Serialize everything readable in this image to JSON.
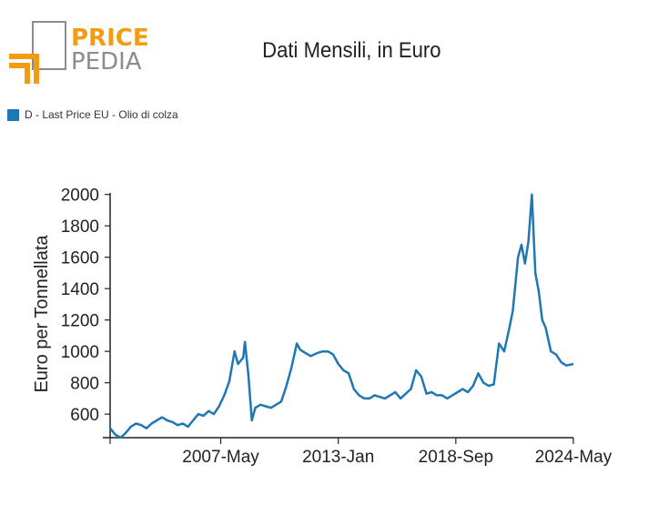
{
  "header": {
    "logo": {
      "word1": "PRICE",
      "word2": "PEDIA",
      "colors": {
        "primary": "#f39c12",
        "secondary": "#8c8c8c"
      }
    }
  },
  "chart_data": {
    "type": "line",
    "title": "Dati Mensili, in Euro",
    "xlabel": "",
    "ylabel": "Euro per Tonnellata",
    "ylim": [
      450,
      2010
    ],
    "yticks": [
      600,
      800,
      1000,
      1200,
      1400,
      1600,
      1800,
      2000
    ],
    "xlim": [
      "2002-01",
      "2024-05"
    ],
    "xticks": [
      {
        "date": "2007-05",
        "label": "2007-May"
      },
      {
        "date": "2013-01",
        "label": "2013-Jan"
      },
      {
        "date": "2018-09",
        "label": "2018-Sep"
      },
      {
        "date": "2024-05",
        "label": "2024-May"
      }
    ],
    "legend": {
      "placement": "top-left",
      "entries": [
        "D - Last Price EU - Olio di colza"
      ]
    },
    "series": [
      {
        "name": "D - Last Price EU - Olio di colza",
        "color": "#1f77b4",
        "x": [
          "2002-01",
          "2002-04",
          "2002-07",
          "2002-10",
          "2003-01",
          "2003-04",
          "2003-07",
          "2003-10",
          "2004-01",
          "2004-04",
          "2004-07",
          "2004-10",
          "2005-01",
          "2005-04",
          "2005-07",
          "2005-10",
          "2006-01",
          "2006-04",
          "2006-07",
          "2006-10",
          "2007-01",
          "2007-04",
          "2007-07",
          "2007-10",
          "2008-01",
          "2008-03",
          "2008-06",
          "2008-07",
          "2008-09",
          "2008-11",
          "2009-01",
          "2009-04",
          "2009-07",
          "2009-10",
          "2010-01",
          "2010-04",
          "2010-07",
          "2010-10",
          "2011-01",
          "2011-03",
          "2011-06",
          "2011-09",
          "2012-01",
          "2012-04",
          "2012-07",
          "2012-10",
          "2013-01",
          "2013-04",
          "2013-07",
          "2013-10",
          "2014-01",
          "2014-04",
          "2014-07",
          "2014-10",
          "2015-01",
          "2015-04",
          "2015-07",
          "2015-10",
          "2016-01",
          "2016-04",
          "2016-07",
          "2016-10",
          "2017-01",
          "2017-04",
          "2017-07",
          "2017-10",
          "2018-01",
          "2018-04",
          "2018-07",
          "2018-10",
          "2019-01",
          "2019-04",
          "2019-07",
          "2019-10",
          "2020-01",
          "2020-04",
          "2020-07",
          "2020-10",
          "2021-01",
          "2021-04",
          "2021-06",
          "2021-09",
          "2021-11",
          "2022-01",
          "2022-03",
          "2022-05",
          "2022-07",
          "2022-09",
          "2022-11",
          "2023-01",
          "2023-04",
          "2023-07",
          "2023-10",
          "2024-01",
          "2024-05"
        ],
        "values": [
          510,
          470,
          450,
          480,
          520,
          540,
          530,
          510,
          540,
          560,
          580,
          560,
          550,
          530,
          540,
          520,
          560,
          600,
          590,
          620,
          600,
          650,
          720,
          810,
          1000,
          920,
          960,
          1060,
          850,
          560,
          640,
          660,
          650,
          640,
          660,
          680,
          780,
          900,
          1050,
          1010,
          990,
          970,
          990,
          1000,
          1000,
          980,
          920,
          880,
          860,
          760,
          720,
          700,
          700,
          720,
          710,
          700,
          720,
          740,
          700,
          730,
          760,
          880,
          840,
          730,
          740,
          720,
          720,
          700,
          720,
          740,
          760,
          740,
          780,
          860,
          800,
          780,
          790,
          1050,
          1000,
          1150,
          1260,
          1600,
          1680,
          1560,
          1700,
          2000,
          1500,
          1380,
          1200,
          1150,
          1000,
          980,
          930,
          910,
          920
        ]
      }
    ]
  }
}
